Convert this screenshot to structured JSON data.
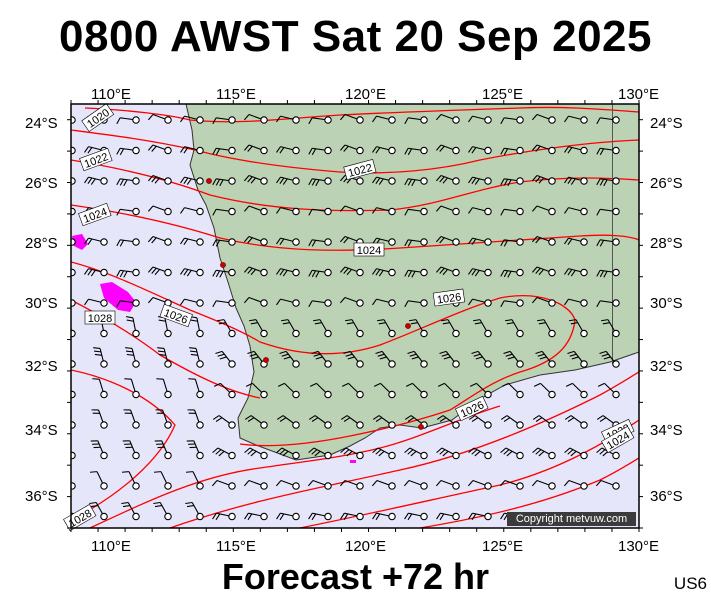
{
  "title": "0800 AWST Sat 20 Sep 2025",
  "footer": "Forecast +72 hr",
  "region_code": "US6",
  "copyright": "Copyright metvuw.com",
  "axes": {
    "lon_labels": [
      "110°E",
      "115°E",
      "120°E",
      "125°E",
      "130°E"
    ],
    "lat_labels": [
      "24°S",
      "26°S",
      "28°S",
      "30°S",
      "32°S",
      "34°S",
      "36°S"
    ]
  },
  "isobar_labels": [
    "1020",
    "1022",
    "1024",
    "1026",
    "1028",
    "1022",
    "1024",
    "1026",
    "1026",
    "1028",
    "1024",
    "1028"
  ],
  "colors": {
    "sea": "#e6e6fa",
    "land": "#bcd2b4",
    "isobar": "#ff0000",
    "rain": "#ff00ff",
    "barb": "#000000"
  },
  "map": {
    "lon_range": [
      109,
      130
    ],
    "lat_range": [
      -37,
      -23.5
    ],
    "grid_spacing_deg": 1
  }
}
